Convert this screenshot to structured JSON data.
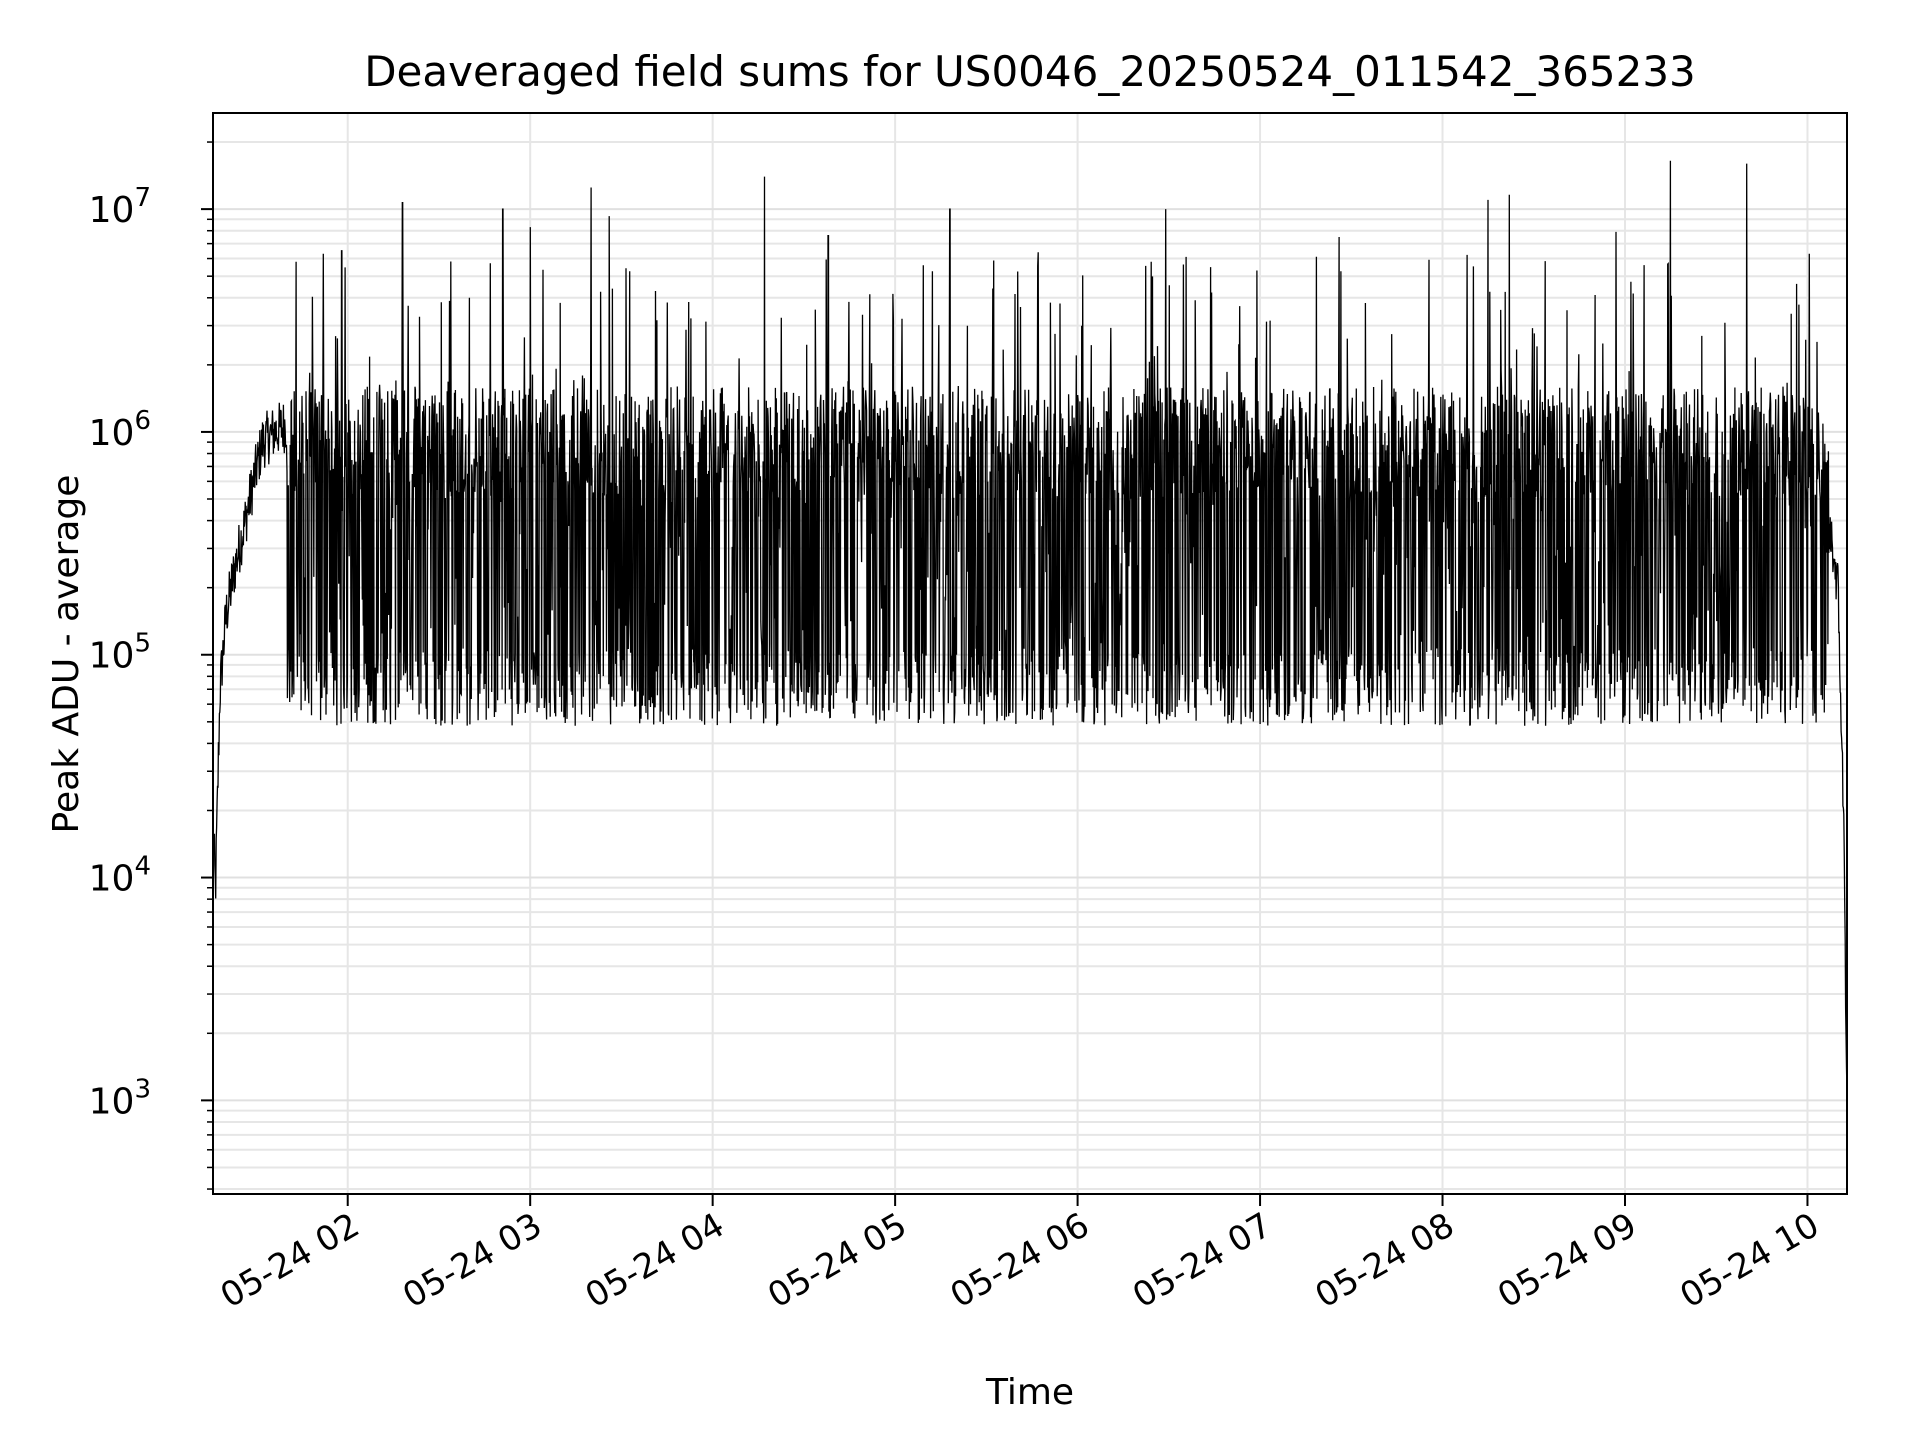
{
  "chart_data": {
    "type": "line",
    "title": "Deaveraged field sums for US0046_20250524_011542_365233",
    "xlabel": "Time",
    "ylabel": "Peak ADU - average",
    "x_axis": {
      "kind": "time",
      "range": [
        "2025-05-24T01:15:42",
        "2025-05-24T10:13:00"
      ],
      "ticks": [
        {
          "label": "05-24 02",
          "value": "2025-05-24T02:00:00"
        },
        {
          "label": "05-24 03",
          "value": "2025-05-24T03:00:00"
        },
        {
          "label": "05-24 04",
          "value": "2025-05-24T04:00:00"
        },
        {
          "label": "05-24 05",
          "value": "2025-05-24T05:00:00"
        },
        {
          "label": "05-24 06",
          "value": "2025-05-24T06:00:00"
        },
        {
          "label": "05-24 07",
          "value": "2025-05-24T07:00:00"
        },
        {
          "label": "05-24 08",
          "value": "2025-05-24T08:00:00"
        },
        {
          "label": "05-24 09",
          "value": "2025-05-24T09:00:00"
        },
        {
          "label": "05-24 10",
          "value": "2025-05-24T10:00:00"
        }
      ]
    },
    "y_axis": {
      "scale": "log",
      "range": [
        380,
        27000000
      ],
      "ticks": [
        {
          "base": "10",
          "exp": "3",
          "value": 1000
        },
        {
          "base": "10",
          "exp": "4",
          "value": 10000
        },
        {
          "base": "10",
          "exp": "5",
          "value": 100000
        },
        {
          "base": "10",
          "exp": "6",
          "value": 1000000
        },
        {
          "base": "10",
          "exp": "7",
          "value": 10000000
        }
      ]
    },
    "grid": "on (major and minor)",
    "line_color": "#000000",
    "series": [
      {
        "points": [
          [
            "2025-05-24T01:15:42",
            18000
          ],
          [
            "2025-05-24T01:16:30",
            8500
          ],
          [
            "2025-05-24T01:18:00",
            70000
          ],
          [
            "2025-05-24T01:20:00",
            150000
          ],
          [
            "2025-05-24T01:23:00",
            250000
          ],
          [
            "2025-05-24T01:26:00",
            380000
          ],
          [
            "2025-05-24T01:29:00",
            600000
          ],
          [
            "2025-05-24T01:32:00",
            900000
          ],
          [
            "2025-05-24T01:36:00",
            1000000
          ],
          [
            "2025-05-24T01:45:00",
            1200000
          ],
          [
            "2025-05-24T01:55:00",
            1300000
          ],
          [
            "2025-05-24T02:00:00",
            1000000
          ],
          [
            "2025-05-24T02:15:00",
            400000
          ],
          [
            "2025-05-24T02:30:00",
            200000
          ],
          [
            "2025-05-24T02:45:00",
            160000
          ],
          [
            "2025-05-24T03:00:00",
            280000
          ],
          [
            "2025-05-24T03:30:00",
            450000
          ],
          [
            "2025-05-24T04:00:00",
            480000
          ],
          [
            "2025-05-24T04:30:00",
            470000
          ],
          [
            "2025-05-24T05:00:00",
            480000
          ],
          [
            "2025-05-24T05:30:00",
            470000
          ],
          [
            "2025-05-24T06:00:00",
            500000
          ],
          [
            "2025-05-24T06:30:00",
            480000
          ],
          [
            "2025-05-24T07:00:00",
            470000
          ],
          [
            "2025-05-24T07:30:00",
            480000
          ],
          [
            "2025-05-24T08:00:00",
            470000
          ],
          [
            "2025-05-24T08:30:00",
            460000
          ],
          [
            "2025-05-24T09:00:00",
            450000
          ],
          [
            "2025-05-24T09:30:00",
            500000
          ],
          [
            "2025-05-24T09:50:00",
            650000
          ],
          [
            "2025-05-24T09:58:00",
            800000
          ],
          [
            "2025-05-24T10:00:00",
            1000000
          ],
          [
            "2025-05-24T10:03:00",
            450000
          ],
          [
            "2025-05-24T10:08:00",
            320000
          ],
          [
            "2025-05-24T10:10:00",
            200000
          ],
          [
            "2025-05-24T10:11:00",
            60000
          ],
          [
            "2025-05-24T10:12:00",
            15000
          ],
          [
            "2025-05-24T10:13:00",
            1000
          ]
        ]
      }
    ],
    "spikes": [
      [
        "2025-05-24T01:43:00",
        5800000
      ],
      [
        "2025-05-24T01:52:00",
        6300000
      ],
      [
        "2025-05-24T01:58:00",
        6500000
      ],
      [
        "2025-05-24T02:18:00",
        10700000
      ],
      [
        "2025-05-24T02:40:00",
        4000000
      ],
      [
        "2025-05-24T02:51:00",
        10000000
      ],
      [
        "2025-05-24T03:00:00",
        8300000
      ],
      [
        "2025-05-24T03:20:00",
        12500000
      ],
      [
        "2025-05-24T03:26:00",
        9300000
      ],
      [
        "2025-05-24T04:17:00",
        14000000
      ],
      [
        "2025-05-24T04:38:00",
        7600000
      ],
      [
        "2025-05-24T05:18:00",
        10000000
      ],
      [
        "2025-05-24T05:47:00",
        6400000
      ],
      [
        "2025-05-24T06:29:00",
        10000000
      ],
      [
        "2025-05-24T06:59:00",
        5300000
      ],
      [
        "2025-05-24T07:26:00",
        7500000
      ],
      [
        "2025-05-24T08:15:00",
        11000000
      ],
      [
        "2025-05-24T08:22:00",
        11600000
      ],
      [
        "2025-05-24T08:57:00",
        7900000
      ],
      [
        "2025-05-24T09:15:00",
        16500000
      ],
      [
        "2025-05-24T09:40:00",
        16000000
      ]
    ],
    "noise_floor": 48000,
    "noise_band_top": 1600000
  }
}
